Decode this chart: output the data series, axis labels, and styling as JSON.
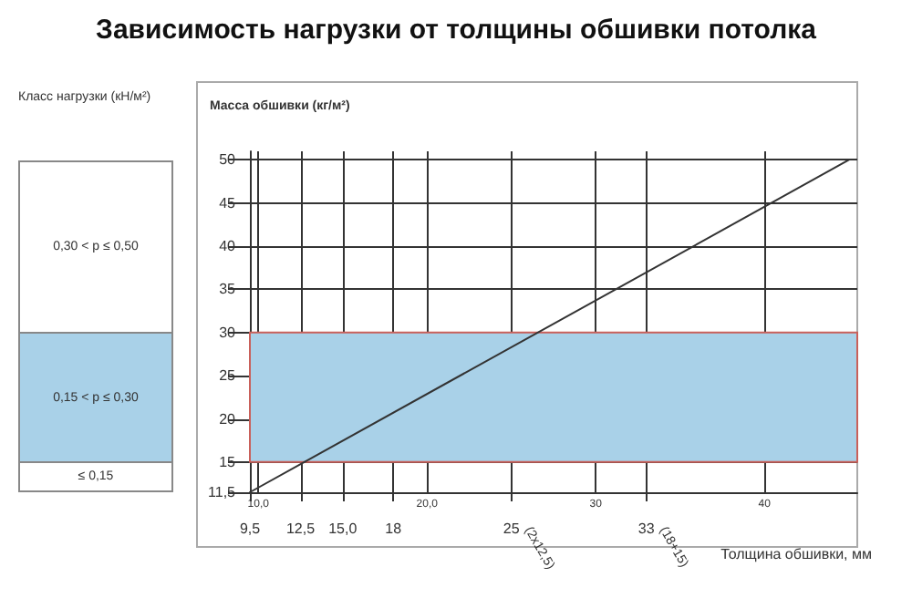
{
  "chart_data": [
    {
      "type": "other",
      "title": "Класс нагрузки (кН/м²)",
      "annotations": [
        "0,30 < p ≤ 0,50",
        "0,15 < p ≤ 0,30",
        "≤ 0,15"
      ]
    },
    {
      "type": "line",
      "title": "Зависимость нагрузки от толщины обшивки потолка",
      "xlabel": "Толщина обшивки, мм",
      "ylabel": "Масса обшивки (кг/м²)",
      "x": [
        9.5,
        45
      ],
      "series": [
        {
          "color": "#333333",
          "values": [
            11.5,
            50
          ]
        }
      ],
      "xlim": [
        9.5,
        45.5
      ],
      "ylim": [
        11.5,
        51
      ],
      "xticks": [
        {
          "value": 9.5,
          "label": "9,5"
        },
        {
          "value": 12.5,
          "label": "12,5"
        },
        {
          "value": 15,
          "label": "15,0"
        },
        18,
        25,
        33
      ],
      "x2lim": [
        9.5,
        45.5
      ],
      "x2ticks": [
        {
          "value": 10,
          "label": "10,0"
        },
        {
          "value": 20,
          "label": "20,0"
        },
        30,
        40
      ],
      "yticks": [
        {
          "value": 11.5,
          "label": "11,5"
        },
        15,
        20,
        25,
        30,
        35,
        40,
        45,
        50
      ],
      "bands": [
        {
          "axis": "y",
          "from": 15,
          "to": 30,
          "color": "#a9d1e8"
        }
      ],
      "annotations": [
        "(2x12,5)",
        "(18+15)"
      ],
      "grid": true,
      "marker": "none",
      "line_style": "solid"
    }
  ]
}
